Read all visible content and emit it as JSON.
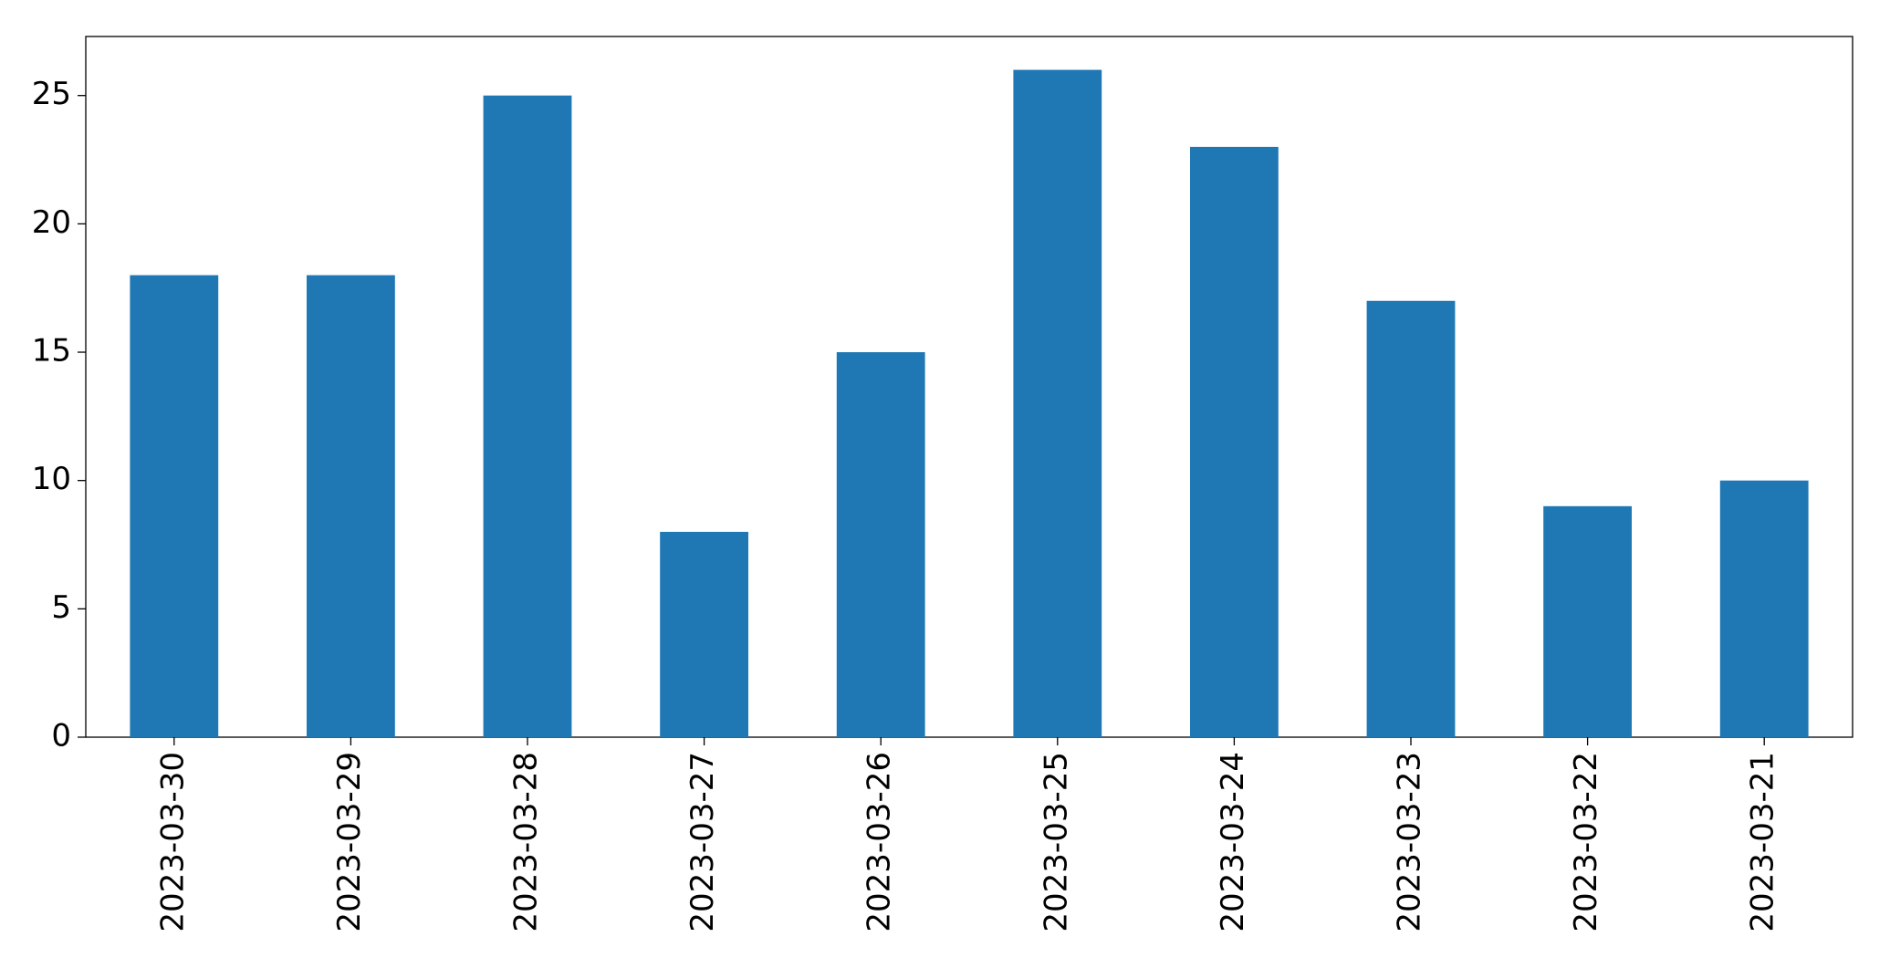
{
  "chart_data": {
    "type": "bar",
    "categories": [
      "2023-03-30",
      "2023-03-29",
      "2023-03-28",
      "2023-03-27",
      "2023-03-26",
      "2023-03-25",
      "2023-03-24",
      "2023-03-23",
      "2023-03-22",
      "2023-03-21"
    ],
    "values": [
      18,
      18,
      25,
      8,
      15,
      26,
      23,
      17,
      9,
      10
    ],
    "color": "#1f77b4",
    "ylim": [
      0,
      27.3
    ],
    "yticks": [
      0,
      5,
      10,
      15,
      20,
      25
    ],
    "grid": false
  }
}
